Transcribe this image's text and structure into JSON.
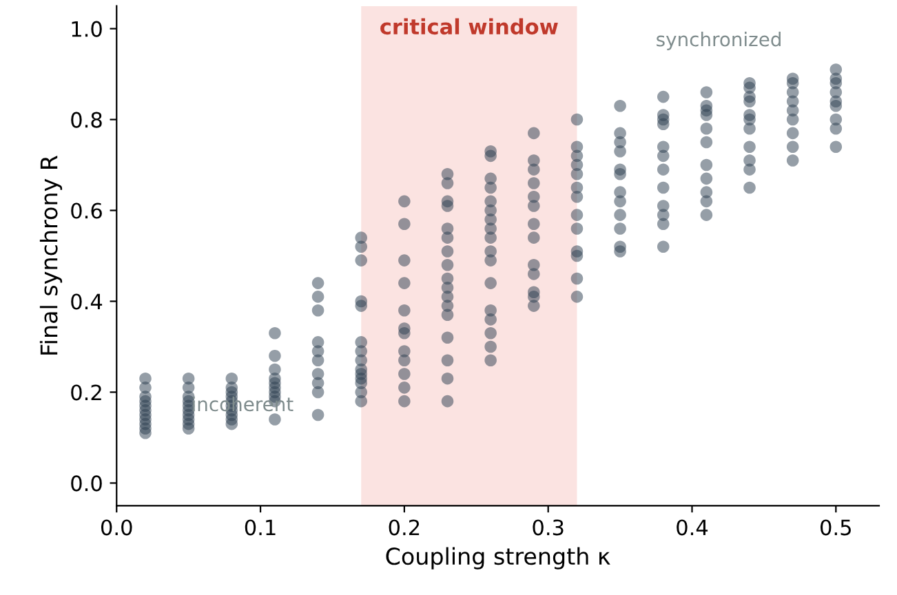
{
  "chart_data": {
    "type": "scatter",
    "xlabel": "Coupling strength κ",
    "ylabel": "Final synchrony R",
    "xlim": [
      0,
      0.53
    ],
    "ylim": [
      -0.05,
      1.05
    ],
    "xticks": [
      {
        "value": 0,
        "label": "0.0"
      },
      0.1,
      0.2,
      0.3,
      0.4,
      0.5
    ],
    "yticks": [
      {
        "value": 0,
        "label": "0.0"
      },
      0.2,
      0.4,
      0.6,
      0.8,
      {
        "value": 1,
        "label": "1.0"
      }
    ],
    "grid": false,
    "legend": false,
    "marker": "circle",
    "bands": [
      {
        "axis": "x",
        "from": 0.17,
        "to": 0.32,
        "label": "critical window",
        "color": "#fbe3e1"
      }
    ],
    "annotations": [
      "synchronized",
      "incoherent"
    ],
    "series": [
      {
        "color": "#2c3e50",
        "x": [
          0.02,
          0.02,
          0.02,
          0.02,
          0.02,
          0.02,
          0.02,
          0.02,
          0.02,
          0.02,
          0.02,
          0.05,
          0.05,
          0.05,
          0.05,
          0.05,
          0.05,
          0.05,
          0.05,
          0.05,
          0.05,
          0.08,
          0.08,
          0.08,
          0.08,
          0.08,
          0.08,
          0.08,
          0.08,
          0.08,
          0.08,
          0.11,
          0.11,
          0.11,
          0.11,
          0.11,
          0.11,
          0.11,
          0.11,
          0.11,
          0.11,
          0.14,
          0.14,
          0.14,
          0.14,
          0.14,
          0.14,
          0.14,
          0.14,
          0.14,
          0.14,
          0.17,
          0.17,
          0.17,
          0.17,
          0.17,
          0.17,
          0.17,
          0.17,
          0.17,
          0.17,
          0.17,
          0.17,
          0.17,
          0.17,
          0.2,
          0.2,
          0.2,
          0.2,
          0.2,
          0.2,
          0.2,
          0.2,
          0.2,
          0.2,
          0.2,
          0.2,
          0.23,
          0.23,
          0.23,
          0.23,
          0.23,
          0.23,
          0.23,
          0.23,
          0.23,
          0.23,
          0.23,
          0.23,
          0.23,
          0.23,
          0.23,
          0.23,
          0.23,
          0.26,
          0.26,
          0.26,
          0.26,
          0.26,
          0.26,
          0.26,
          0.26,
          0.26,
          0.26,
          0.26,
          0.26,
          0.26,
          0.26,
          0.26,
          0.26,
          0.26,
          0.29,
          0.29,
          0.29,
          0.29,
          0.29,
          0.29,
          0.29,
          0.29,
          0.29,
          0.29,
          0.29,
          0.29,
          0.29,
          0.32,
          0.32,
          0.32,
          0.32,
          0.32,
          0.32,
          0.32,
          0.32,
          0.32,
          0.32,
          0.32,
          0.32,
          0.32,
          0.35,
          0.35,
          0.35,
          0.35,
          0.35,
          0.35,
          0.35,
          0.35,
          0.35,
          0.35,
          0.35,
          0.35,
          0.38,
          0.38,
          0.38,
          0.38,
          0.38,
          0.38,
          0.38,
          0.38,
          0.38,
          0.38,
          0.38,
          0.38,
          0.41,
          0.41,
          0.41,
          0.41,
          0.41,
          0.41,
          0.41,
          0.41,
          0.41,
          0.41,
          0.41,
          0.44,
          0.44,
          0.44,
          0.44,
          0.44,
          0.44,
          0.44,
          0.44,
          0.44,
          0.44,
          0.44,
          0.47,
          0.47,
          0.47,
          0.47,
          0.47,
          0.47,
          0.47,
          0.47,
          0.47,
          0.5,
          0.5,
          0.5,
          0.5,
          0.5,
          0.5,
          0.5,
          0.5,
          0.5
        ],
        "values": [
          0.23,
          0.21,
          0.19,
          0.18,
          0.17,
          0.16,
          0.15,
          0.14,
          0.13,
          0.12,
          0.11,
          0.23,
          0.21,
          0.19,
          0.18,
          0.17,
          0.16,
          0.15,
          0.14,
          0.13,
          0.12,
          0.23,
          0.21,
          0.2,
          0.19,
          0.18,
          0.17,
          0.16,
          0.15,
          0.14,
          0.13,
          0.33,
          0.28,
          0.25,
          0.23,
          0.22,
          0.21,
          0.2,
          0.19,
          0.18,
          0.14,
          0.44,
          0.41,
          0.38,
          0.31,
          0.29,
          0.27,
          0.24,
          0.22,
          0.2,
          0.15,
          0.54,
          0.52,
          0.49,
          0.4,
          0.39,
          0.31,
          0.29,
          0.27,
          0.25,
          0.24,
          0.23,
          0.22,
          0.2,
          0.18,
          0.62,
          0.57,
          0.49,
          0.44,
          0.38,
          0.34,
          0.33,
          0.29,
          0.27,
          0.24,
          0.21,
          0.18,
          0.68,
          0.66,
          0.62,
          0.61,
          0.56,
          0.54,
          0.51,
          0.48,
          0.45,
          0.43,
          0.41,
          0.39,
          0.37,
          0.32,
          0.27,
          0.23,
          0.18,
          0.73,
          0.72,
          0.67,
          0.65,
          0.62,
          0.6,
          0.58,
          0.56,
          0.54,
          0.51,
          0.49,
          0.44,
          0.38,
          0.36,
          0.33,
          0.3,
          0.27,
          0.77,
          0.71,
          0.69,
          0.66,
          0.63,
          0.61,
          0.57,
          0.54,
          0.48,
          0.46,
          0.42,
          0.41,
          0.39,
          0.8,
          0.74,
          0.72,
          0.7,
          0.68,
          0.65,
          0.63,
          0.59,
          0.56,
          0.51,
          0.5,
          0.45,
          0.41,
          0.83,
          0.77,
          0.75,
          0.73,
          0.69,
          0.68,
          0.64,
          0.62,
          0.59,
          0.56,
          0.52,
          0.51,
          0.85,
          0.81,
          0.8,
          0.79,
          0.74,
          0.72,
          0.69,
          0.65,
          0.61,
          0.59,
          0.57,
          0.52,
          0.86,
          0.83,
          0.82,
          0.81,
          0.78,
          0.75,
          0.7,
          0.67,
          0.64,
          0.62,
          0.59,
          0.88,
          0.87,
          0.85,
          0.84,
          0.81,
          0.8,
          0.78,
          0.74,
          0.71,
          0.69,
          0.65,
          0.89,
          0.88,
          0.86,
          0.84,
          0.82,
          0.8,
          0.77,
          0.74,
          0.71,
          0.91,
          0.89,
          0.88,
          0.86,
          0.84,
          0.83,
          0.8,
          0.78,
          0.74
        ]
      }
    ]
  }
}
